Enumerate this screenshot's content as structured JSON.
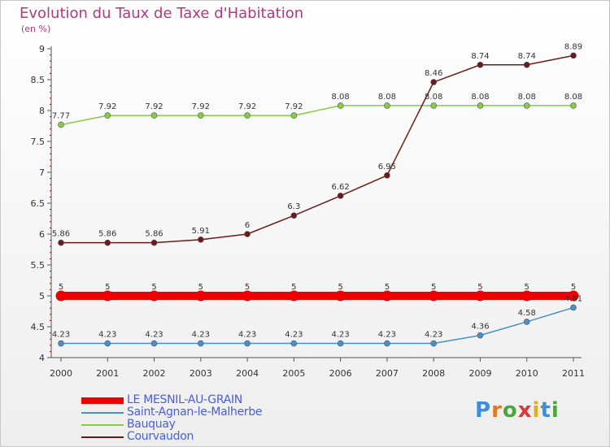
{
  "chart_data": {
    "type": "line",
    "title": "Evolution du Taux de Taxe d'Habitation",
    "subtitle": "(en %)",
    "x": [
      "2000",
      "2001",
      "2002",
      "2003",
      "2004",
      "2005",
      "2006",
      "2007",
      "2008",
      "2009",
      "2010",
      "2011"
    ],
    "ylim": [
      4,
      9
    ],
    "yticks": [
      "4",
      "4.5",
      "5",
      "5.5",
      "6",
      "6.5",
      "7",
      "7.5",
      "8",
      "8.5",
      "9"
    ],
    "grid": false,
    "legend_position": "bottom-left",
    "series": [
      {
        "name": "LE MESNIL-AU-GRAIN",
        "color": "#ee0000",
        "values": [
          5,
          5,
          5,
          5,
          5,
          5,
          5,
          5,
          5,
          5,
          5,
          5
        ],
        "labels": [
          "5",
          "5",
          "5",
          "5",
          "5",
          "5",
          "5",
          "5",
          "5",
          "5",
          "5",
          "5"
        ]
      },
      {
        "name": "Saint-Agnan-le-Malherbe",
        "color": "#4a90c8",
        "values": [
          4.23,
          4.23,
          4.23,
          4.23,
          4.23,
          4.23,
          4.23,
          4.23,
          4.23,
          4.36,
          4.58,
          4.81
        ],
        "labels": [
          "4.23",
          "4.23",
          "4.23",
          "4.23",
          "4.23",
          "4.23",
          "4.23",
          "4.23",
          "4.23",
          "4.36",
          "4.58",
          "4.81"
        ]
      },
      {
        "name": "Bauquay",
        "color": "#88cc44",
        "values": [
          7.77,
          7.92,
          7.92,
          7.92,
          7.92,
          7.92,
          8.08,
          8.08,
          8.08,
          8.08,
          8.08,
          8.08
        ],
        "labels": [
          "7.77",
          "7.92",
          "7.92",
          "7.92",
          "7.92",
          "7.92",
          "8.08",
          "8.08",
          "8.08",
          "8.08",
          "8.08",
          "8.08"
        ]
      },
      {
        "name": "Courvaudon",
        "color": "#6b1a1a",
        "values": [
          5.86,
          5.86,
          5.86,
          5.91,
          6,
          6.3,
          6.62,
          6.95,
          8.46,
          8.74,
          8.74,
          8.89
        ],
        "labels": [
          "5.86",
          "5.86",
          "5.86",
          "5.91",
          "6",
          "6.3",
          "6.62",
          "6.95",
          "8.46",
          "8.74",
          "8.74",
          "8.89"
        ]
      }
    ]
  },
  "logo": {
    "text": "Proxiti"
  }
}
